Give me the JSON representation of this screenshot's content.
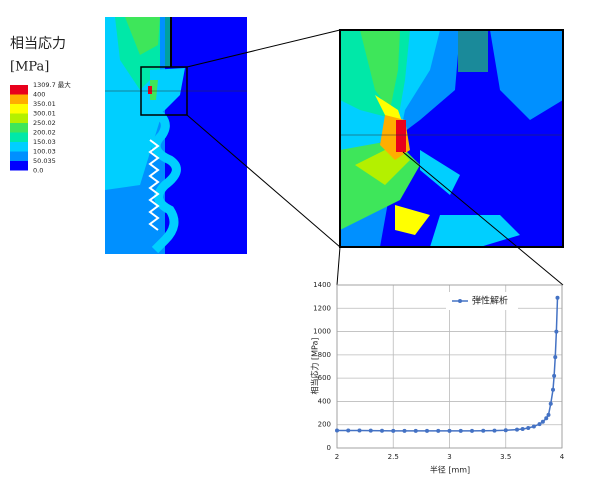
{
  "legend": {
    "title": "相当応力",
    "unit": "[MPa]",
    "labels": [
      "1309.7 最大",
      "400",
      "350.01",
      "300.01",
      "250.02",
      "200.02",
      "150.03",
      "100.03",
      "50.035",
      "0.0"
    ],
    "colors": [
      "#e8001c",
      "#ffae00",
      "#ffff00",
      "#b4f000",
      "#3ee65a",
      "#00e8a8",
      "#00cfff",
      "#0090ff",
      "#0000ff"
    ]
  },
  "chart_data": {
    "type": "line",
    "x_label": "半径 [mm]",
    "y_label": "相当応力 [MPa]",
    "x": [
      2.0,
      2.1,
      2.2,
      2.3,
      2.4,
      2.5,
      2.6,
      2.7,
      2.8,
      2.9,
      3.0,
      3.1,
      3.2,
      3.3,
      3.4,
      3.5,
      3.6,
      3.65,
      3.7,
      3.75,
      3.8,
      3.83,
      3.86,
      3.88,
      3.9,
      3.92,
      3.93,
      3.94,
      3.95,
      3.96
    ],
    "series": [
      {
        "name": "弾性解析",
        "color": "#4472c4",
        "values": [
          150,
          150,
          150,
          149,
          148,
          147,
          147,
          147,
          147,
          147,
          147,
          147,
          147,
          148,
          149,
          152,
          158,
          163,
          172,
          185,
          205,
          225,
          255,
          285,
          380,
          500,
          620,
          780,
          1000,
          1290
        ]
      }
    ],
    "xlim": [
      2,
      4
    ],
    "xticks": [
      2,
      2.5,
      3,
      3.5,
      4
    ],
    "ylim": [
      0,
      1400
    ],
    "yticks": [
      0,
      200,
      400,
      600,
      800,
      1000,
      1200,
      1400
    ],
    "grid": true,
    "legend_position": "top-right"
  }
}
